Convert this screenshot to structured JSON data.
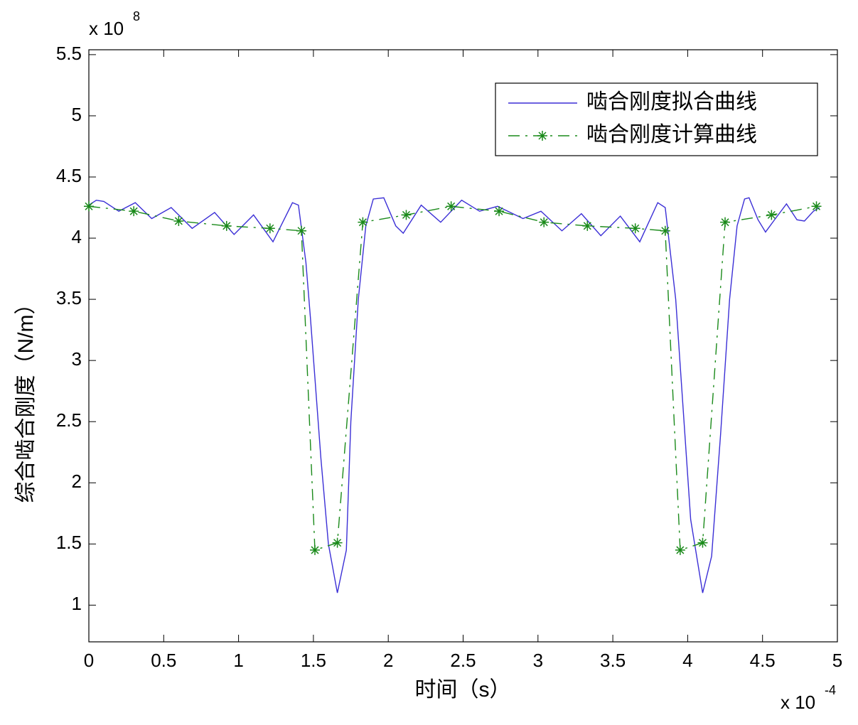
{
  "chart_data": {
    "type": "line",
    "x_label": "时间（s）",
    "y_label": "综合啮合刚度（N/m）",
    "x_multiplier": "x 10",
    "x_exponent": "-4",
    "y_multiplier": "x 10",
    "y_exponent": "8",
    "xlim": [
      0,
      5
    ],
    "ylim": [
      0.7,
      5.54
    ],
    "xticks": [
      0,
      0.5,
      1,
      1.5,
      2,
      2.5,
      3,
      3.5,
      4,
      4.5,
      5
    ],
    "yticks": [
      1,
      1.5,
      2,
      2.5,
      3,
      3.5,
      4,
      4.5,
      5,
      5.5
    ],
    "grid": false,
    "legend": "upper right",
    "series": [
      {
        "name": "啮合刚度拟合曲线",
        "color": "#3b2fd6",
        "x": [
          0,
          0.05,
          0.1,
          0.2,
          0.31,
          0.42,
          0.55,
          0.69,
          0.84,
          0.97,
          1.1,
          1.23,
          1.36,
          1.4,
          1.45,
          1.48,
          1.55,
          1.6,
          1.66,
          1.72,
          1.75,
          1.8,
          1.85,
          1.9,
          1.97,
          2.05,
          2.1,
          2.22,
          2.35,
          2.49,
          2.61,
          2.73,
          2.9,
          3.02,
          3.16,
          3.29,
          3.42,
          3.55,
          3.68,
          3.8,
          3.85,
          3.92,
          3.97,
          4.02,
          4.1,
          4.16,
          4.22,
          4.28,
          4.33,
          4.38,
          4.41,
          4.47,
          4.52,
          4.58,
          4.66,
          4.73,
          4.78,
          4.84,
          4.88
        ],
        "values": [
          4.27,
          4.31,
          4.3,
          4.22,
          4.29,
          4.16,
          4.25,
          4.08,
          4.21,
          4.03,
          4.19,
          3.97,
          4.29,
          4.27,
          3.8,
          3.35,
          2.2,
          1.5,
          1.1,
          1.45,
          2.5,
          3.5,
          4.1,
          4.32,
          4.33,
          4.1,
          4.04,
          4.27,
          4.13,
          4.31,
          4.22,
          4.26,
          4.16,
          4.22,
          4.06,
          4.2,
          4.02,
          4.18,
          3.97,
          4.29,
          4.25,
          3.5,
          2.6,
          1.7,
          1.1,
          1.4,
          2.4,
          3.5,
          4.1,
          4.32,
          4.33,
          4.15,
          4.05,
          4.15,
          4.28,
          4.15,
          4.14,
          4.22,
          4.25
        ]
      },
      {
        "name": "啮合刚度计算曲线",
        "color": "#1a8a1a",
        "x": [
          0,
          0.3,
          0.6,
          0.92,
          1.21,
          1.42,
          1.51,
          1.66,
          1.83,
          2.12,
          2.42,
          2.74,
          3.04,
          3.33,
          3.65,
          3.85,
          3.95,
          4.1,
          4.25,
          4.56,
          4.86
        ],
        "values": [
          4.26,
          4.22,
          4.14,
          4.1,
          4.08,
          4.06,
          1.45,
          1.51,
          4.13,
          4.19,
          4.26,
          4.22,
          4.13,
          4.1,
          4.08,
          4.06,
          1.45,
          1.51,
          4.13,
          4.19,
          4.26
        ]
      }
    ]
  }
}
